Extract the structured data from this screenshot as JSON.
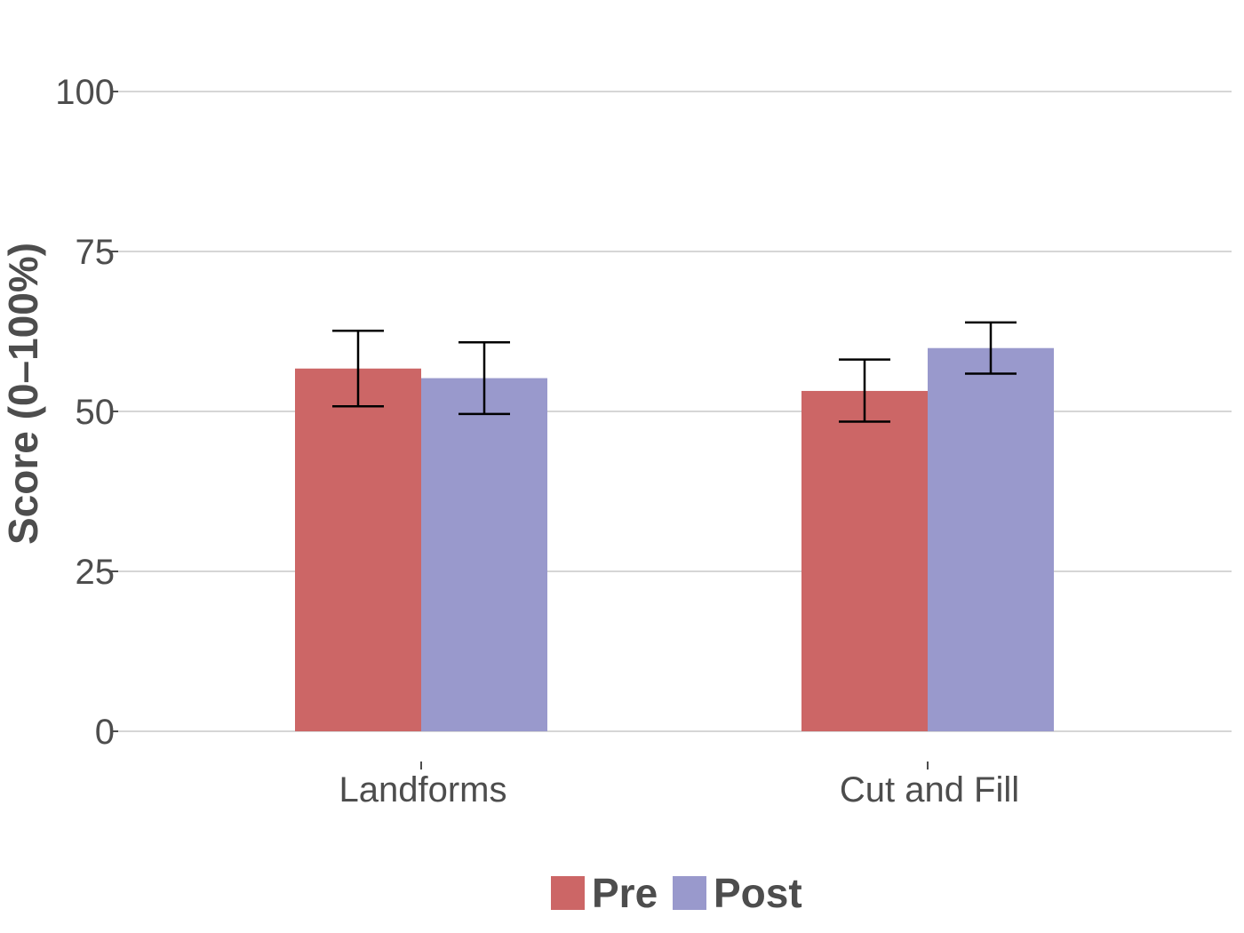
{
  "chart_data": {
    "type": "bar",
    "ylabel": "Score (0–100%)",
    "ylim": [
      0,
      100
    ],
    "yticks": [
      0,
      25,
      50,
      75,
      100
    ],
    "yticks_labels": [
      "0",
      "25",
      "50",
      "75",
      "100"
    ],
    "categories": [
      "Landforms",
      "Cut and Fill"
    ],
    "series": [
      {
        "name": "Pre",
        "color": "#cc6666",
        "values": [
          56.7,
          53.2
        ],
        "error_low": [
          50.8,
          48.4
        ],
        "error_high": [
          62.6,
          58.1
        ]
      },
      {
        "name": "Post",
        "color": "#9999cc",
        "values": [
          55.2,
          59.9
        ],
        "error_low": [
          49.6,
          55.9
        ],
        "error_high": [
          60.8,
          63.9
        ]
      }
    ],
    "grid": "horizontal",
    "legend_position": "bottom"
  }
}
